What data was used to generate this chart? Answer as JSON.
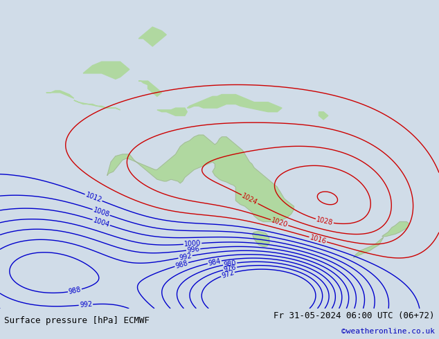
{
  "title_left": "Surface pressure [hPa] ECMWF",
  "title_right": "Fr 31-05-2024 06:00 UTC (06+72)",
  "copyright": "©weatheronline.co.uk",
  "bg_color": "#d0dce8",
  "land_color": "#b0d8a0",
  "ocean_color": "#d0dce8",
  "figsize": [
    6.34,
    4.9
  ],
  "dpi": 100,
  "footer_bg": "#ffffff",
  "text_color_black": "#000000",
  "text_color_blue": "#0000bb",
  "isobar_blue": "#0000cc",
  "isobar_red": "#cc0000",
  "isobar_black": "#000000",
  "lon_min": 90,
  "lon_max": 185,
  "lat_min": -60,
  "lat_max": 20
}
